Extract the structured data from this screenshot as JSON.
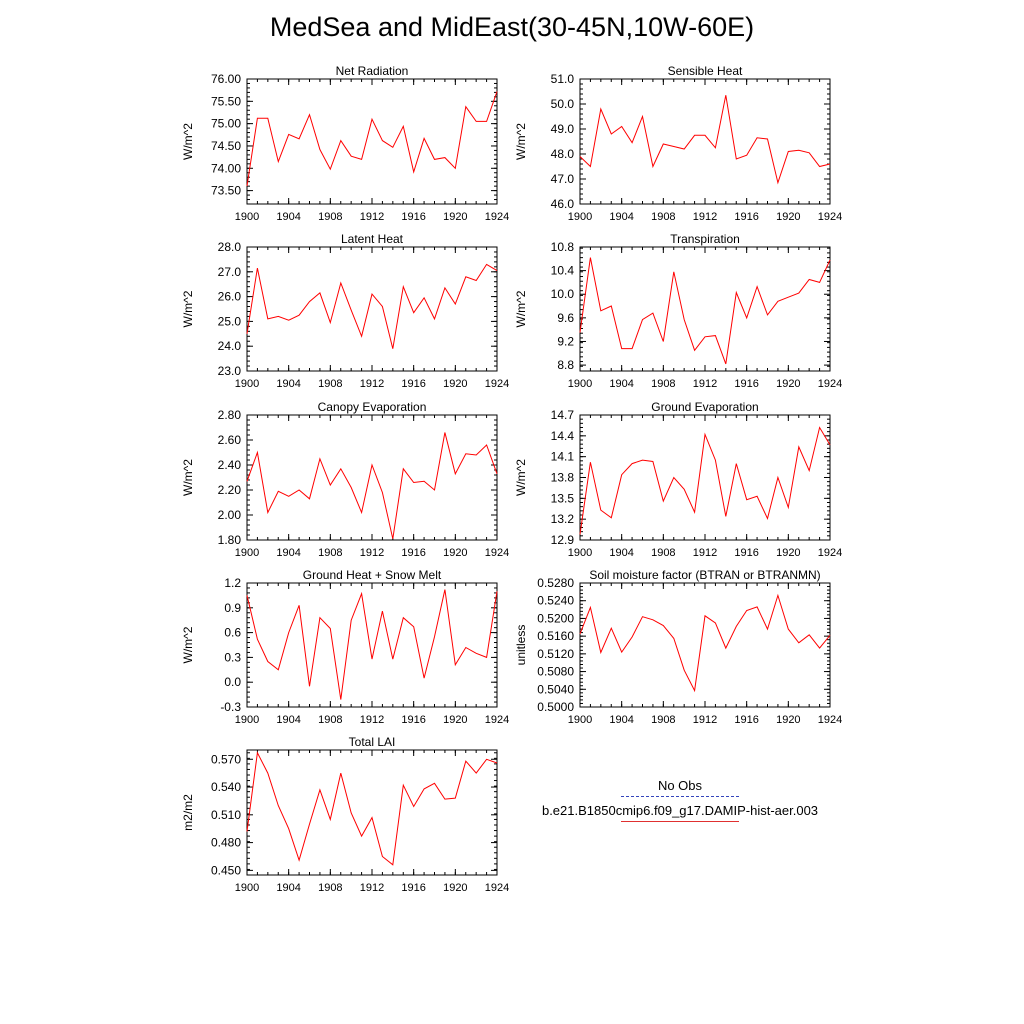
{
  "title": "MedSea and MidEast(30-45N,10W-60E)",
  "colors": {
    "model_line": "#ff0000",
    "obs_line": "#3344bb"
  },
  "legend": {
    "obs_label": "No Obs",
    "model_label": "b.e21.B1850cmip6.f09_g17.DAMIP-hist-aer.003"
  },
  "chart_data": [
    {
      "type": "line",
      "title": "Net Radiation",
      "ylabel": "W/m^2",
      "x": [
        1900,
        1901,
        1902,
        1903,
        1904,
        1905,
        1906,
        1907,
        1908,
        1909,
        1910,
        1911,
        1912,
        1913,
        1914,
        1915,
        1916,
        1917,
        1918,
        1919,
        1920,
        1921,
        1922,
        1923,
        1924
      ],
      "values": [
        73.6,
        75.12,
        75.12,
        74.15,
        74.76,
        74.66,
        75.2,
        74.42,
        73.98,
        74.62,
        74.27,
        74.2,
        75.1,
        74.62,
        74.47,
        74.94,
        73.92,
        74.67,
        74.2,
        74.24,
        74.0,
        75.38,
        75.05,
        75.05,
        75.72
      ],
      "ylim": [
        73.2,
        76.0
      ],
      "xlim": [
        1900,
        1924
      ],
      "yticks": [
        "73.50",
        "74.00",
        "74.50",
        "75.00",
        "75.50",
        "76.00"
      ],
      "xticks": [
        "1900",
        "1904",
        "1908",
        "1912",
        "1916",
        "1920",
        "1924"
      ]
    },
    {
      "type": "line",
      "title": "Sensible Heat",
      "ylabel": "W/m^2",
      "x": [
        1900,
        1901,
        1902,
        1903,
        1904,
        1905,
        1906,
        1907,
        1908,
        1909,
        1910,
        1911,
        1912,
        1913,
        1914,
        1915,
        1916,
        1917,
        1918,
        1919,
        1920,
        1921,
        1922,
        1923,
        1924
      ],
      "values": [
        47.9,
        47.5,
        49.8,
        48.8,
        49.1,
        48.45,
        49.5,
        47.5,
        48.4,
        48.3,
        48.2,
        48.75,
        48.75,
        48.25,
        50.35,
        47.8,
        47.95,
        48.65,
        48.6,
        46.85,
        48.1,
        48.15,
        48.05,
        47.5,
        47.6
      ],
      "ylim": [
        46.0,
        51.0
      ],
      "xlim": [
        1900,
        1924
      ],
      "yticks": [
        "46.0",
        "47.0",
        "48.0",
        "49.0",
        "50.0",
        "51.0"
      ],
      "xticks": [
        "1900",
        "1904",
        "1908",
        "1912",
        "1916",
        "1920",
        "1924"
      ]
    },
    {
      "type": "line",
      "title": "Latent Heat",
      "ylabel": "W/m^2",
      "x": [
        1900,
        1901,
        1902,
        1903,
        1904,
        1905,
        1906,
        1907,
        1908,
        1909,
        1910,
        1911,
        1912,
        1913,
        1914,
        1915,
        1916,
        1917,
        1918,
        1919,
        1920,
        1921,
        1922,
        1923,
        1924
      ],
      "values": [
        24.5,
        27.15,
        25.1,
        25.2,
        25.05,
        25.25,
        25.8,
        26.15,
        24.95,
        26.55,
        25.45,
        24.4,
        26.1,
        25.6,
        23.9,
        26.4,
        25.35,
        25.95,
        25.1,
        26.35,
        25.7,
        26.8,
        26.65,
        27.3,
        27.05
      ],
      "ylim": [
        23.0,
        28.0
      ],
      "xlim": [
        1900,
        1924
      ],
      "yticks": [
        "23.0",
        "24.0",
        "25.0",
        "26.0",
        "27.0",
        "28.0"
      ],
      "xticks": [
        "1900",
        "1904",
        "1908",
        "1912",
        "1916",
        "1920",
        "1924"
      ]
    },
    {
      "type": "line",
      "title": "Transpiration",
      "ylabel": "W/m^2",
      "x": [
        1900,
        1901,
        1902,
        1903,
        1904,
        1905,
        1906,
        1907,
        1908,
        1909,
        1910,
        1911,
        1912,
        1913,
        1914,
        1915,
        1916,
        1917,
        1918,
        1919,
        1920,
        1921,
        1922,
        1923,
        1924
      ],
      "values": [
        9.35,
        10.62,
        9.72,
        9.8,
        9.08,
        9.08,
        9.57,
        9.68,
        9.2,
        10.38,
        9.57,
        9.05,
        9.28,
        9.3,
        8.82,
        10.03,
        9.6,
        10.13,
        9.65,
        9.88,
        9.95,
        10.02,
        10.25,
        10.2,
        10.58
      ],
      "ylim": [
        8.7,
        10.8
      ],
      "xlim": [
        1900,
        1924
      ],
      "yticks": [
        "8.8",
        "9.2",
        "9.6",
        "10.0",
        "10.4",
        "10.8"
      ],
      "xticks": [
        "1900",
        "1904",
        "1908",
        "1912",
        "1916",
        "1920",
        "1924"
      ]
    },
    {
      "type": "line",
      "title": "Canopy Evaporation",
      "ylabel": "W/m^2",
      "x": [
        1900,
        1901,
        1902,
        1903,
        1904,
        1905,
        1906,
        1907,
        1908,
        1909,
        1910,
        1911,
        1912,
        1913,
        1914,
        1915,
        1916,
        1917,
        1918,
        1919,
        1920,
        1921,
        1922,
        1923,
        1924
      ],
      "values": [
        2.27,
        2.5,
        2.02,
        2.19,
        2.15,
        2.2,
        2.13,
        2.45,
        2.24,
        2.37,
        2.22,
        2.02,
        2.4,
        2.18,
        1.81,
        2.37,
        2.26,
        2.27,
        2.2,
        2.66,
        2.33,
        2.49,
        2.48,
        2.56,
        2.33
      ],
      "ylim": [
        1.8,
        2.8
      ],
      "xlim": [
        1900,
        1924
      ],
      "yticks": [
        "1.80",
        "2.00",
        "2.20",
        "2.40",
        "2.60",
        "2.80"
      ],
      "xticks": [
        "1900",
        "1904",
        "1908",
        "1912",
        "1916",
        "1920",
        "1924"
      ]
    },
    {
      "type": "line",
      "title": "Ground Evaporation",
      "ylabel": "W/m^2",
      "x": [
        1900,
        1901,
        1902,
        1903,
        1904,
        1905,
        1906,
        1907,
        1908,
        1909,
        1910,
        1911,
        1912,
        1913,
        1914,
        1915,
        1916,
        1917,
        1918,
        1919,
        1920,
        1921,
        1922,
        1923,
        1924
      ],
      "values": [
        12.98,
        14.02,
        13.33,
        13.22,
        13.84,
        14.0,
        14.05,
        14.03,
        13.46,
        13.8,
        13.63,
        13.3,
        14.42,
        14.05,
        13.24,
        14.0,
        13.48,
        13.53,
        13.21,
        13.8,
        13.37,
        14.24,
        13.9,
        14.52,
        14.27
      ],
      "ylim": [
        12.9,
        14.7
      ],
      "xlim": [
        1900,
        1924
      ],
      "yticks": [
        "12.9",
        "13.2",
        "13.5",
        "13.8",
        "14.1",
        "14.4",
        "14.7"
      ],
      "xticks": [
        "1900",
        "1904",
        "1908",
        "1912",
        "1916",
        "1920",
        "1924"
      ]
    },
    {
      "type": "line",
      "title": "Ground Heat + Snow Melt",
      "ylabel": "W/m^2",
      "x": [
        1900,
        1901,
        1902,
        1903,
        1904,
        1905,
        1906,
        1907,
        1908,
        1909,
        1910,
        1911,
        1912,
        1913,
        1914,
        1915,
        1916,
        1917,
        1918,
        1919,
        1920,
        1921,
        1922,
        1923,
        1924
      ],
      "values": [
        1.05,
        0.52,
        0.25,
        0.15,
        0.6,
        0.93,
        -0.05,
        0.78,
        0.65,
        -0.21,
        0.75,
        1.07,
        0.28,
        0.86,
        0.28,
        0.78,
        0.67,
        0.05,
        0.55,
        1.12,
        0.21,
        0.42,
        0.35,
        0.3,
        1.1
      ],
      "ylim": [
        -0.3,
        1.2
      ],
      "xlim": [
        1900,
        1924
      ],
      "yticks": [
        "-0.3",
        "0.0",
        "0.3",
        "0.6",
        "0.9",
        "1.2"
      ],
      "xticks": [
        "1900",
        "1904",
        "1908",
        "1912",
        "1916",
        "1920",
        "1924"
      ]
    },
    {
      "type": "line",
      "title": "Soil moisture factor (BTRAN or BTRANMN)",
      "ylabel": "unitless",
      "x": [
        1900,
        1901,
        1902,
        1903,
        1904,
        1905,
        1906,
        1907,
        1908,
        1909,
        1910,
        1911,
        1912,
        1913,
        1914,
        1915,
        1916,
        1917,
        1918,
        1919,
        1920,
        1921,
        1922,
        1923,
        1924
      ],
      "values": [
        0.5165,
        0.5225,
        0.5123,
        0.5178,
        0.5124,
        0.5158,
        0.5204,
        0.5197,
        0.5184,
        0.5155,
        0.5083,
        0.5037,
        0.5206,
        0.519,
        0.5133,
        0.5182,
        0.5218,
        0.5226,
        0.5176,
        0.5252,
        0.5176,
        0.5145,
        0.5163,
        0.5133,
        0.5162
      ],
      "ylim": [
        0.5,
        0.528
      ],
      "xlim": [
        1900,
        1924
      ],
      "yticks": [
        "0.5000",
        "0.5040",
        "0.5080",
        "0.5120",
        "0.5160",
        "0.5200",
        "0.5240",
        "0.5280"
      ],
      "xticks": [
        "1900",
        "1904",
        "1908",
        "1912",
        "1916",
        "1920",
        "1924"
      ]
    },
    {
      "type": "line",
      "title": "Total LAI",
      "ylabel": "m2/m2",
      "x": [
        1900,
        1901,
        1902,
        1903,
        1904,
        1905,
        1906,
        1907,
        1908,
        1909,
        1910,
        1911,
        1912,
        1913,
        1914,
        1915,
        1916,
        1917,
        1918,
        1919,
        1920,
        1921,
        1922,
        1923,
        1924
      ],
      "values": [
        0.492,
        0.577,
        0.555,
        0.52,
        0.495,
        0.461,
        0.5,
        0.537,
        0.505,
        0.555,
        0.512,
        0.487,
        0.507,
        0.465,
        0.456,
        0.542,
        0.519,
        0.538,
        0.544,
        0.527,
        0.528,
        0.568,
        0.555,
        0.57,
        0.566
      ],
      "ylim": [
        0.445,
        0.58
      ],
      "xlim": [
        1900,
        1924
      ],
      "yticks": [
        "0.450",
        "0.480",
        "0.510",
        "0.540",
        "0.570"
      ],
      "xticks": [
        "1900",
        "1904",
        "1908",
        "1912",
        "1916",
        "1920",
        "1924"
      ]
    }
  ]
}
